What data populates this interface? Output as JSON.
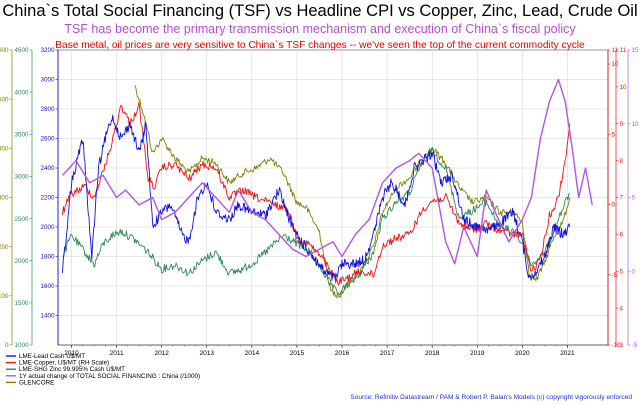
{
  "title": "China`s Total Social Financing (TSF) vs Headline CPI vs Copper, Zinc, Lead, Crude Oil",
  "subtitle": "TSF has become the primary transmission mechanism and execution of China`s fiscal policy",
  "subtitle2": "Base metal, oil prices are very sensitive to China`s TSF changes -- we've seen the top of the current commodity cycle",
  "source": "Source: Refinitiv Datastream / PAM & Robert P. Balan's Models (c) copyright vigorously enforced",
  "colors": {
    "title": "#000000",
    "subtitle": "#b34fd0",
    "subtitle2": "#e60000",
    "source": "#1f2fd0",
    "lead": "#1010e0",
    "copper": "#ee1111",
    "zinc": "#2e8b57",
    "tsf": "#b355e8",
    "glencore": "#808000"
  },
  "chart_data": {
    "type": "line",
    "x_tick_labels": [
      "2010",
      "2011",
      "2012",
      "2013",
      "2014",
      "2015",
      "2016",
      "2017",
      "2018",
      "2019",
      "2020",
      "2021"
    ],
    "x_tick_positions": [
      2010,
      2011,
      2012,
      2013,
      2014,
      2015,
      2016,
      2017,
      2018,
      2019,
      2020,
      2021
    ],
    "xlim": [
      2009.7,
      2021.9
    ],
    "grid": true,
    "legend_position": "bottom-left",
    "axes": [
      {
        "id": "glencore",
        "ylim": [
          0,
          600
        ],
        "ticks": [
          0,
          100,
          200,
          300,
          400,
          500,
          600
        ],
        "color": "#808000"
      },
      {
        "id": "zinc",
        "ylim": [
          1000,
          4500
        ],
        "ticks": [
          1000,
          1500,
          2000,
          2500,
          3000,
          3500,
          4000,
          4500
        ],
        "color": "#2e8b57"
      },
      {
        "id": "lead",
        "ylim": [
          1200,
          3200
        ],
        "ticks": [
          1400,
          1600,
          1800,
          2000,
          2200,
          2400,
          2600,
          2800,
          3000,
          3200
        ],
        "color": "#1010e0"
      },
      {
        "id": "cpi",
        "ylim": [
          -10,
          11
        ],
        "ticks": [
          -10,
          -5,
          0,
          5,
          10,
          11
        ],
        "color": "#ee1111"
      },
      {
        "id": "copper",
        "ylim": [
          3,
          11
        ],
        "ticks": [
          3,
          4,
          5,
          6,
          7,
          8,
          9,
          10,
          11
        ],
        "color": "#ee1111"
      },
      {
        "id": "tsf",
        "ylim": [
          -5,
          15
        ],
        "ticks": [
          -5,
          0,
          5,
          10,
          15
        ],
        "color": "#b355e8"
      }
    ],
    "series": [
      {
        "name": "LME-Lead Cash U$/MT",
        "axis": "lead",
        "x": [
          2009.8,
          2010.0,
          2010.25,
          2010.45,
          2010.6,
          2010.75,
          2010.9,
          2011.1,
          2011.3,
          2011.5,
          2011.65,
          2011.8,
          2012.0,
          2012.2,
          2012.45,
          2012.6,
          2012.8,
          2013.0,
          2013.2,
          2013.5,
          2013.7,
          2014.0,
          2014.3,
          2014.6,
          2014.9,
          2015.1,
          2015.35,
          2015.6,
          2015.85,
          2016.0,
          2016.3,
          2016.5,
          2016.7,
          2016.9,
          2017.1,
          2017.4,
          2017.6,
          2017.8,
          2018.0,
          2018.2,
          2018.45,
          2018.7,
          2019.0,
          2019.3,
          2019.6,
          2019.8,
          2020.0,
          2020.15,
          2020.3,
          2020.5,
          2020.7,
          2020.9,
          2021.05
        ],
        "y": [
          1700,
          2300,
          2600,
          1800,
          2400,
          2600,
          2750,
          2600,
          2700,
          2500,
          2700,
          2000,
          2100,
          2150,
          1950,
          1900,
          2200,
          2300,
          2100,
          2050,
          2150,
          2100,
          2080,
          2250,
          2000,
          1900,
          1800,
          1700,
          1650,
          1750,
          1750,
          1780,
          1950,
          2200,
          2300,
          2150,
          2400,
          2450,
          2500,
          2300,
          2350,
          2050,
          2000,
          1980,
          2050,
          2100,
          1900,
          1650,
          1700,
          1800,
          2000,
          1950,
          2000
        ]
      },
      {
        "name": "LME-Copper, U$/MT (RH Scale)",
        "axis": "copper",
        "x": [
          2009.8,
          2010.0,
          2010.3,
          2010.5,
          2010.7,
          2010.9,
          2011.1,
          2011.3,
          2011.5,
          2011.7,
          2011.85,
          2012.0,
          2012.3,
          2012.6,
          2012.9,
          2013.2,
          2013.5,
          2013.8,
          2014.1,
          2014.5,
          2014.8,
          2015.0,
          2015.3,
          2015.6,
          2015.9,
          2016.1,
          2016.4,
          2016.7,
          2016.9,
          2017.2,
          2017.5,
          2017.8,
          2018.0,
          2018.3,
          2018.6,
          2018.9,
          2019.2,
          2019.5,
          2019.8,
          2020.0,
          2020.2,
          2020.4,
          2020.6,
          2020.8,
          2020.95,
          2021.05
        ],
        "y": [
          6.6,
          7.1,
          7.3,
          7.0,
          7.7,
          8.5,
          9.5,
          9.0,
          9.5,
          7.5,
          7.3,
          7.8,
          7.9,
          7.5,
          7.9,
          7.8,
          7.0,
          7.2,
          7.0,
          6.8,
          6.7,
          5.9,
          5.7,
          5.3,
          4.7,
          4.8,
          5.0,
          4.9,
          5.7,
          5.9,
          6.0,
          6.7,
          6.9,
          7.0,
          6.3,
          6.1,
          6.3,
          6.1,
          6.0,
          6.0,
          5.0,
          5.3,
          6.5,
          7.0,
          8.0,
          9.0
        ]
      },
      {
        "name": "LME-SHG Zinc 99.995% Cash U$/MT",
        "axis": "zinc",
        "x": [
          2009.8,
          2010.0,
          2010.3,
          2010.5,
          2010.7,
          2010.9,
          2011.1,
          2011.4,
          2011.7,
          2012.0,
          2012.3,
          2012.6,
          2012.9,
          2013.2,
          2013.5,
          2013.8,
          2014.1,
          2014.4,
          2014.7,
          2015.0,
          2015.3,
          2015.6,
          2015.9,
          2016.1,
          2016.4,
          2016.7,
          2016.9,
          2017.2,
          2017.5,
          2017.8,
          2018.0,
          2018.3,
          2018.6,
          2018.9,
          2019.2,
          2019.5,
          2019.8,
          2020.0,
          2020.2,
          2020.5,
          2020.8,
          2021.05
        ],
        "y": [
          2050,
          2300,
          2100,
          1950,
          2200,
          2300,
          2350,
          2250,
          2100,
          1900,
          1950,
          1850,
          2000,
          2100,
          1850,
          1900,
          2000,
          2150,
          2300,
          2200,
          2100,
          1850,
          1600,
          1700,
          1850,
          2100,
          2500,
          2700,
          2800,
          3200,
          3300,
          3100,
          2500,
          2600,
          2700,
          2400,
          2350,
          2200,
          1950,
          2100,
          2500,
          2800
        ]
      },
      {
        "name": "1Y actual change of TOTAL SOCIAL FINANCING : China (/1000)",
        "axis": "tsf",
        "x": [
          2009.8,
          2010.1,
          2010.4,
          2010.7,
          2011.0,
          2011.2,
          2011.5,
          2011.8,
          2012.0,
          2012.3,
          2012.6,
          2012.9,
          2013.2,
          2013.5,
          2013.7,
          2014.0,
          2014.3,
          2014.6,
          2014.9,
          2015.2,
          2015.5,
          2015.8,
          2016.0,
          2016.3,
          2016.6,
          2016.9,
          2017.2,
          2017.5,
          2017.7,
          2018.0,
          2018.3,
          2018.5,
          2018.7,
          2019.0,
          2019.2,
          2019.4,
          2019.7,
          2020.0,
          2020.2,
          2020.4,
          2020.6,
          2020.8,
          2020.95,
          2021.1,
          2021.25,
          2021.4,
          2021.55
        ],
        "y": [
          6.5,
          7.5,
          6.0,
          6.5,
          5.0,
          5.5,
          4.5,
          5.0,
          3.5,
          4.0,
          5.0,
          6.0,
          5.0,
          4.0,
          5.5,
          4.0,
          3.5,
          2.5,
          1.5,
          1.0,
          1.5,
          2.0,
          1.0,
          2.5,
          3.5,
          6.0,
          7.0,
          7.5,
          8.0,
          7.0,
          2.0,
          0.5,
          3.0,
          1.0,
          5.5,
          4.0,
          2.0,
          3.5,
          5.0,
          9.0,
          11.5,
          13.0,
          11.5,
          8.5,
          5.0,
          7.0,
          4.5
        ]
      },
      {
        "name": "GLENCORE",
        "axis": "glencore",
        "x": [
          2011.4,
          2011.6,
          2011.8,
          2012.0,
          2012.3,
          2012.6,
          2012.9,
          2013.2,
          2013.5,
          2013.8,
          2014.1,
          2014.4,
          2014.7,
          2015.0,
          2015.2,
          2015.5,
          2015.75,
          2015.95,
          2016.1,
          2016.4,
          2016.7,
          2016.9,
          2017.2,
          2017.5,
          2017.8,
          2018.0,
          2018.3,
          2018.6,
          2018.9,
          2019.2,
          2019.5,
          2019.8,
          2020.0,
          2020.15,
          2020.3,
          2020.5,
          2020.7,
          2020.9,
          2021.05
        ],
        "y": [
          530,
          470,
          390,
          420,
          380,
          350,
          380,
          370,
          330,
          350,
          360,
          380,
          350,
          290,
          280,
          230,
          110,
          100,
          120,
          150,
          200,
          270,
          320,
          340,
          380,
          400,
          370,
          320,
          290,
          300,
          270,
          270,
          250,
          150,
          130,
          170,
          220,
          250,
          300
        ]
      }
    ],
    "legend": [
      "LME-Lead Cash U$/MT",
      "LME-Copper, U$/MT (RH Scale)",
      "LME-SHG Zinc 99.995% Cash U$/MT",
      "1Y actual change of TOTAL SOCIAL FINANCING : China (/1000)",
      "GLENCORE"
    ]
  }
}
